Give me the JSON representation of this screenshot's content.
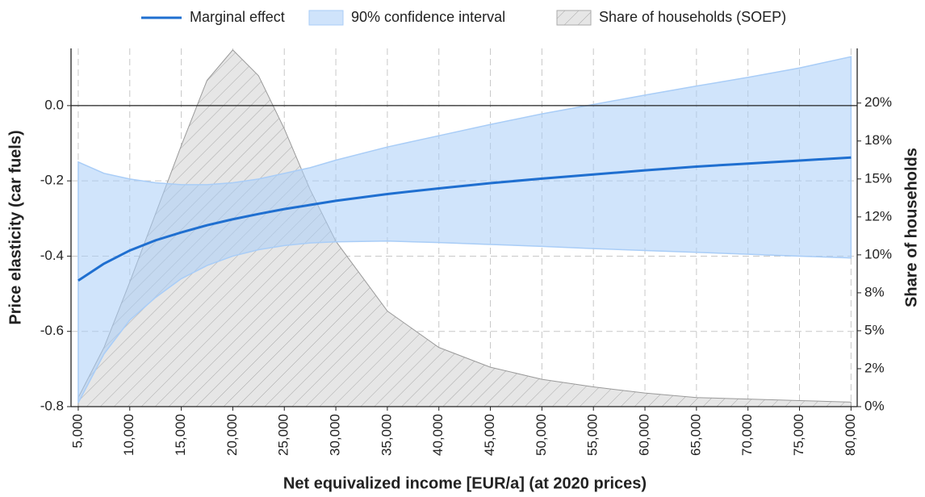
{
  "chart_data": {
    "type": "line",
    "x_label": "Net equivalized income [EUR/a] (at 2020 prices)",
    "y_label": "Price elasticity (car fuels)",
    "y2_label": "Share of households",
    "x": [
      5000,
      7500,
      10000,
      12500,
      15000,
      17500,
      20000,
      22500,
      25000,
      27500,
      30000,
      35000,
      40000,
      45000,
      50000,
      55000,
      60000,
      65000,
      70000,
      75000,
      80000
    ],
    "series": [
      {
        "name": "Marginal effect",
        "color": "#1f6fd0",
        "values": [
          -0.465,
          -0.42,
          -0.385,
          -0.358,
          -0.337,
          -0.318,
          -0.302,
          -0.288,
          -0.275,
          -0.264,
          -0.253,
          -0.235,
          -0.22,
          -0.206,
          -0.194,
          -0.183,
          -0.172,
          -0.162,
          -0.154,
          -0.146,
          -0.138
        ]
      },
      {
        "name": "90% confidence interval",
        "color": "#a9cdf7",
        "upper": [
          -0.15,
          -0.18,
          -0.195,
          -0.205,
          -0.21,
          -0.21,
          -0.205,
          -0.195,
          -0.18,
          -0.165,
          -0.145,
          -0.11,
          -0.08,
          -0.05,
          -0.022,
          0.003,
          0.028,
          0.052,
          0.075,
          0.1,
          0.13
        ],
        "lower": [
          -0.79,
          -0.66,
          -0.57,
          -0.51,
          -0.46,
          -0.425,
          -0.4,
          -0.383,
          -0.372,
          -0.365,
          -0.362,
          -0.36,
          -0.364,
          -0.369,
          -0.374,
          -0.38,
          -0.385,
          -0.39,
          -0.395,
          -0.4,
          -0.405
        ]
      },
      {
        "name": "Share of households (SOEP)",
        "color": "#d8d8d8",
        "axis": "y2",
        "hatch": true,
        "values": [
          0.6,
          3.9,
          8.2,
          12.7,
          17.2,
          21.5,
          23.5,
          21.8,
          18.3,
          14.3,
          10.9,
          6.3,
          3.9,
          2.6,
          1.8,
          1.3,
          0.9,
          0.6,
          0.5,
          0.4,
          0.3
        ]
      }
    ],
    "xlim": [
      4300,
      80600
    ],
    "xticks": [
      {
        "value": 5000,
        "label": "5,000"
      },
      {
        "value": 10000,
        "label": "10,000"
      },
      {
        "value": 15000,
        "label": "15,000"
      },
      {
        "value": 20000,
        "label": "20,000"
      },
      {
        "value": 25000,
        "label": "25,000"
      },
      {
        "value": 30000,
        "label": "30,000"
      },
      {
        "value": 35000,
        "label": "35,000"
      },
      {
        "value": 40000,
        "label": "40,000"
      },
      {
        "value": 45000,
        "label": "45,000"
      },
      {
        "value": 50000,
        "label": "50,000"
      },
      {
        "value": 55000,
        "label": "55,000"
      },
      {
        "value": 60000,
        "label": "60,000"
      },
      {
        "value": 65000,
        "label": "65,000"
      },
      {
        "value": 70000,
        "label": "70,000"
      },
      {
        "value": 75000,
        "label": "75,000"
      },
      {
        "value": 80000,
        "label": "80,000"
      }
    ],
    "ylim": [
      -0.8,
      0.152
    ],
    "yticks": [
      -0.8,
      -0.6,
      -0.4,
      -0.2,
      {
        "value": 0,
        "label": "0.0"
      }
    ],
    "y2lim": [
      0,
      23.6
    ],
    "y2ticks": [
      {
        "value": 0,
        "label": "0%"
      },
      {
        "value": 2.5,
        "label": "2%"
      },
      {
        "value": 5,
        "label": "5%"
      },
      {
        "value": 7.5,
        "label": "8%"
      },
      {
        "value": 10,
        "label": "10%"
      },
      {
        "value": 12.5,
        "label": "12%"
      },
      {
        "value": 15,
        "label": "15%"
      },
      {
        "value": 17.5,
        "label": "18%"
      },
      {
        "value": 20,
        "label": "20%"
      }
    ],
    "grid": true
  }
}
